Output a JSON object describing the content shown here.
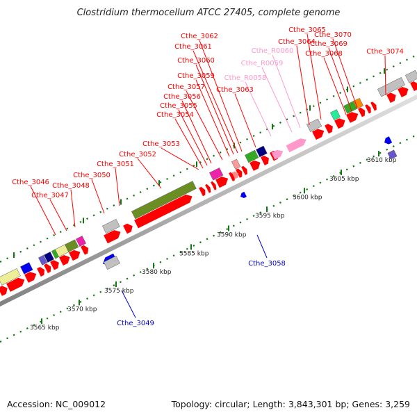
{
  "title": "Clostridium thermocellum ATCC 27405, complete genome",
  "footer": {
    "accession": "Accession: NC_009012",
    "summary": "Topology: circular; Length: 3,843,301 bp; Genes: 3,259"
  },
  "colors": {
    "cds": "#ff0000",
    "rna": "#ff99cc",
    "minus_label": "#0000cc",
    "cog_olive": "#6b8e23",
    "cog_blue": "#0000ee",
    "cog_navy": "#000080",
    "cog_green": "#33aa22",
    "cog_grey": "#c0c0c0",
    "cog_khaki": "#eeee99",
    "cog_magenta": "#ee22aa",
    "cog_mint": "#22ee99",
    "cog_orange": "#ff8800",
    "cog_purple": "#6655cc",
    "backbone": "#999999",
    "tick_marks": "#117711"
  },
  "ticks": [
    "3565 kbp",
    "3570 kbp",
    "3575 kbp",
    "3580 kbp",
    "3585 kbp",
    "3590 kbp",
    "3595 kbp",
    "3600 kbp",
    "3605 kbp",
    "3610 kbp"
  ],
  "labels_top": [
    "Cthe_3046",
    "Cthe_3047",
    "Cthe_3048",
    "Cthe_3050",
    "Cthe_3051",
    "Cthe_3052",
    "Cthe_3053",
    "Cthe_3054",
    "Cthe_3055",
    "Cthe_3056",
    "Cthe_3057",
    "Cthe_3059",
    "Cthe_3060",
    "Cthe_3061",
    "Cthe_3062",
    "Cthe_3063",
    "Cthe_3064",
    "Cthe_3065",
    "Cthe_3068",
    "Cthe_3069",
    "Cthe_3070",
    "Cthe_3074"
  ],
  "labels_rna": [
    "Cthe_R0058",
    "Cthe_R0059",
    "Cthe_R0060"
  ],
  "labels_minus": [
    "Cthe_3049",
    "Cthe_3058"
  ]
}
